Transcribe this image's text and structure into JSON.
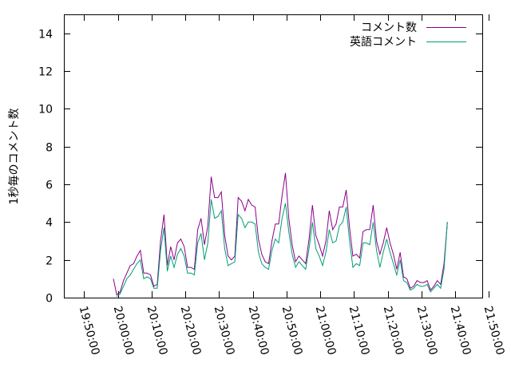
{
  "chart_data": {
    "type": "line",
    "title": "",
    "xlabel": "",
    "ylabel": "1秒毎のコメント数",
    "ylim": [
      0,
      15
    ],
    "yticks": [
      0,
      2,
      4,
      6,
      8,
      10,
      12,
      14
    ],
    "xlim": [
      "19:44:00",
      "21:48:00"
    ],
    "xticks": [
      "19:50:00",
      "20:00:00",
      "20:10:00",
      "20:20:00",
      "20:30:00",
      "20:40:00",
      "20:50:00",
      "21:00:00",
      "21:10:00",
      "21:20:00",
      "21:30:00",
      "21:40:00",
      "21:50:00"
    ],
    "grid": false,
    "legend_position": "top-right",
    "series": [
      {
        "name": "コメント数",
        "color": "#8b008b",
        "points": [
          [
            "19:58:40",
            1.0
          ],
          [
            "19:59:40",
            0.15
          ],
          [
            "20:00:40",
            0.3
          ],
          [
            "20:01:40",
            0.9
          ],
          [
            "20:02:40",
            1.3
          ],
          [
            "20:03:40",
            1.7
          ],
          [
            "20:04:40",
            1.8
          ],
          [
            "20:05:40",
            2.2
          ],
          [
            "20:06:40",
            2.5
          ],
          [
            "20:07:40",
            1.3
          ],
          [
            "20:08:40",
            1.3
          ],
          [
            "20:09:40",
            1.2
          ],
          [
            "20:10:40",
            0.6
          ],
          [
            "20:11:40",
            0.7
          ],
          [
            "20:12:40",
            3.0
          ],
          [
            "20:13:40",
            4.4
          ],
          [
            "20:14:40",
            1.7
          ],
          [
            "20:15:40",
            2.7
          ],
          [
            "20:16:40",
            2.0
          ],
          [
            "20:17:40",
            2.9
          ],
          [
            "20:18:40",
            3.1
          ],
          [
            "20:19:40",
            2.7
          ],
          [
            "20:20:40",
            1.6
          ],
          [
            "20:21:40",
            1.6
          ],
          [
            "20:22:40",
            1.5
          ],
          [
            "20:23:40",
            3.6
          ],
          [
            "20:24:40",
            4.2
          ],
          [
            "20:25:40",
            2.8
          ],
          [
            "20:26:40",
            3.8
          ],
          [
            "20:27:40",
            6.4
          ],
          [
            "20:28:40",
            5.3
          ],
          [
            "20:29:40",
            5.3
          ],
          [
            "20:30:40",
            5.6
          ],
          [
            "20:31:40",
            3.3
          ],
          [
            "20:32:40",
            2.2
          ],
          [
            "20:33:40",
            2.0
          ],
          [
            "20:34:40",
            2.2
          ],
          [
            "20:35:40",
            5.3
          ],
          [
            "20:36:40",
            5.1
          ],
          [
            "20:37:40",
            4.6
          ],
          [
            "20:38:40",
            5.2
          ],
          [
            "20:39:40",
            4.9
          ],
          [
            "20:40:40",
            4.8
          ],
          [
            "20:41:40",
            3.1
          ],
          [
            "20:42:40",
            2.3
          ],
          [
            "20:43:40",
            1.9
          ],
          [
            "20:44:40",
            1.8
          ],
          [
            "20:45:40",
            3.0
          ],
          [
            "20:46:40",
            3.9
          ],
          [
            "20:47:40",
            3.9
          ],
          [
            "20:48:40",
            5.4
          ],
          [
            "20:49:40",
            6.6
          ],
          [
            "20:50:40",
            4.2
          ],
          [
            "20:51:40",
            2.8
          ],
          [
            "20:52:40",
            1.9
          ],
          [
            "20:53:40",
            2.2
          ],
          [
            "20:54:40",
            2.0
          ],
          [
            "20:55:40",
            1.8
          ],
          [
            "20:56:40",
            3.1
          ],
          [
            "20:57:40",
            4.9
          ],
          [
            "20:58:40",
            3.3
          ],
          [
            "20:59:40",
            2.8
          ],
          [
            "21:00:40",
            2.2
          ],
          [
            "21:01:40",
            3.0
          ],
          [
            "21:02:40",
            4.6
          ],
          [
            "21:03:40",
            3.6
          ],
          [
            "21:04:40",
            3.9
          ],
          [
            "21:05:40",
            4.8
          ],
          [
            "21:06:40",
            4.8
          ],
          [
            "21:07:40",
            5.7
          ],
          [
            "21:08:40",
            3.7
          ],
          [
            "21:09:40",
            2.2
          ],
          [
            "21:10:40",
            2.3
          ],
          [
            "21:11:40",
            2.1
          ],
          [
            "21:12:40",
            3.5
          ],
          [
            "21:13:40",
            3.6
          ],
          [
            "21:14:40",
            3.6
          ],
          [
            "21:15:40",
            4.9
          ],
          [
            "21:16:40",
            3.0
          ],
          [
            "21:17:40",
            2.3
          ],
          [
            "21:18:40",
            2.9
          ],
          [
            "21:19:40",
            3.7
          ],
          [
            "21:20:40",
            2.9
          ],
          [
            "21:21:40",
            2.3
          ],
          [
            "21:22:40",
            1.5
          ],
          [
            "21:23:40",
            2.4
          ],
          [
            "21:24:40",
            1.1
          ],
          [
            "21:25:40",
            1.0
          ],
          [
            "21:26:40",
            0.5
          ],
          [
            "21:27:40",
            0.6
          ],
          [
            "21:28:40",
            0.9
          ],
          [
            "21:29:40",
            0.8
          ],
          [
            "21:30:40",
            0.8
          ],
          [
            "21:31:40",
            0.9
          ],
          [
            "21:32:40",
            0.4
          ],
          [
            "21:33:40",
            0.6
          ],
          [
            "21:34:40",
            0.9
          ],
          [
            "21:35:40",
            0.7
          ],
          [
            "21:36:40",
            1.8
          ],
          [
            "21:37:40",
            4.0
          ]
        ]
      },
      {
        "name": "英語コメント",
        "color": "#009e73",
        "points": [
          [
            "19:59:40",
            0.05
          ],
          [
            "20:00:40",
            0.2
          ],
          [
            "20:01:40",
            0.6
          ],
          [
            "20:02:40",
            1.0
          ],
          [
            "20:03:40",
            1.2
          ],
          [
            "20:04:40",
            1.5
          ],
          [
            "20:05:40",
            1.8
          ],
          [
            "20:06:40",
            2.0
          ],
          [
            "20:07:40",
            1.0
          ],
          [
            "20:08:40",
            1.1
          ],
          [
            "20:09:40",
            1.0
          ],
          [
            "20:10:40",
            0.5
          ],
          [
            "20:11:40",
            0.5
          ],
          [
            "20:12:40",
            2.5
          ],
          [
            "20:13:40",
            3.7
          ],
          [
            "20:14:40",
            1.4
          ],
          [
            "20:15:40",
            2.2
          ],
          [
            "20:16:40",
            1.6
          ],
          [
            "20:17:40",
            2.3
          ],
          [
            "20:18:40",
            2.6
          ],
          [
            "20:19:40",
            2.2
          ],
          [
            "20:20:40",
            1.3
          ],
          [
            "20:21:40",
            1.3
          ],
          [
            "20:22:40",
            1.2
          ],
          [
            "20:23:40",
            2.9
          ],
          [
            "20:24:40",
            3.4
          ],
          [
            "20:25:40",
            2.0
          ],
          [
            "20:26:40",
            2.9
          ],
          [
            "20:27:40",
            5.2
          ],
          [
            "20:28:40",
            4.2
          ],
          [
            "20:29:40",
            4.3
          ],
          [
            "20:30:40",
            4.6
          ],
          [
            "20:31:40",
            2.6
          ],
          [
            "20:32:40",
            1.7
          ],
          [
            "20:33:40",
            1.8
          ],
          [
            "20:34:40",
            1.9
          ],
          [
            "20:35:40",
            4.4
          ],
          [
            "20:36:40",
            4.2
          ],
          [
            "20:37:40",
            3.7
          ],
          [
            "20:38:40",
            4.0
          ],
          [
            "20:39:40",
            4.0
          ],
          [
            "20:40:40",
            3.9
          ],
          [
            "20:41:40",
            2.4
          ],
          [
            "20:42:40",
            1.8
          ],
          [
            "20:43:40",
            1.6
          ],
          [
            "20:44:40",
            1.5
          ],
          [
            "20:45:40",
            2.5
          ],
          [
            "20:46:40",
            3.1
          ],
          [
            "20:47:40",
            2.9
          ],
          [
            "20:48:40",
            4.2
          ],
          [
            "20:49:40",
            5.0
          ],
          [
            "20:50:40",
            3.5
          ],
          [
            "20:51:40",
            2.3
          ],
          [
            "20:52:40",
            1.6
          ],
          [
            "20:53:40",
            1.9
          ],
          [
            "20:54:40",
            1.7
          ],
          [
            "20:55:40",
            1.5
          ],
          [
            "20:56:40",
            2.6
          ],
          [
            "20:57:40",
            4.0
          ],
          [
            "20:58:40",
            2.6
          ],
          [
            "20:59:40",
            2.2
          ],
          [
            "21:00:40",
            1.7
          ],
          [
            "21:01:40",
            2.4
          ],
          [
            "21:02:40",
            3.6
          ],
          [
            "21:03:40",
            2.9
          ],
          [
            "21:04:40",
            3.0
          ],
          [
            "21:05:40",
            3.8
          ],
          [
            "21:06:40",
            4.0
          ],
          [
            "21:07:40",
            4.8
          ],
          [
            "21:08:40",
            3.0
          ],
          [
            "21:09:40",
            1.6
          ],
          [
            "21:10:40",
            1.8
          ],
          [
            "21:11:40",
            1.7
          ],
          [
            "21:12:40",
            2.9
          ],
          [
            "21:13:40",
            2.9
          ],
          [
            "21:14:40",
            2.8
          ],
          [
            "21:15:40",
            4.0
          ],
          [
            "21:16:40",
            2.5
          ],
          [
            "21:17:40",
            1.6
          ],
          [
            "21:18:40",
            2.4
          ],
          [
            "21:19:40",
            3.1
          ],
          [
            "21:20:40",
            2.4
          ],
          [
            "21:21:40",
            1.8
          ],
          [
            "21:22:40",
            1.2
          ],
          [
            "21:23:40",
            2.0
          ],
          [
            "21:24:40",
            0.9
          ],
          [
            "21:25:40",
            0.8
          ],
          [
            "21:26:40",
            0.4
          ],
          [
            "21:27:40",
            0.5
          ],
          [
            "21:28:40",
            0.7
          ],
          [
            "21:29:40",
            0.6
          ],
          [
            "21:30:40",
            0.6
          ],
          [
            "21:31:40",
            0.7
          ],
          [
            "21:32:40",
            0.3
          ],
          [
            "21:33:40",
            0.5
          ],
          [
            "21:34:40",
            0.7
          ],
          [
            "21:35:40",
            0.5
          ],
          [
            "21:36:40",
            1.5
          ],
          [
            "21:37:40",
            4.0
          ]
        ]
      }
    ]
  }
}
